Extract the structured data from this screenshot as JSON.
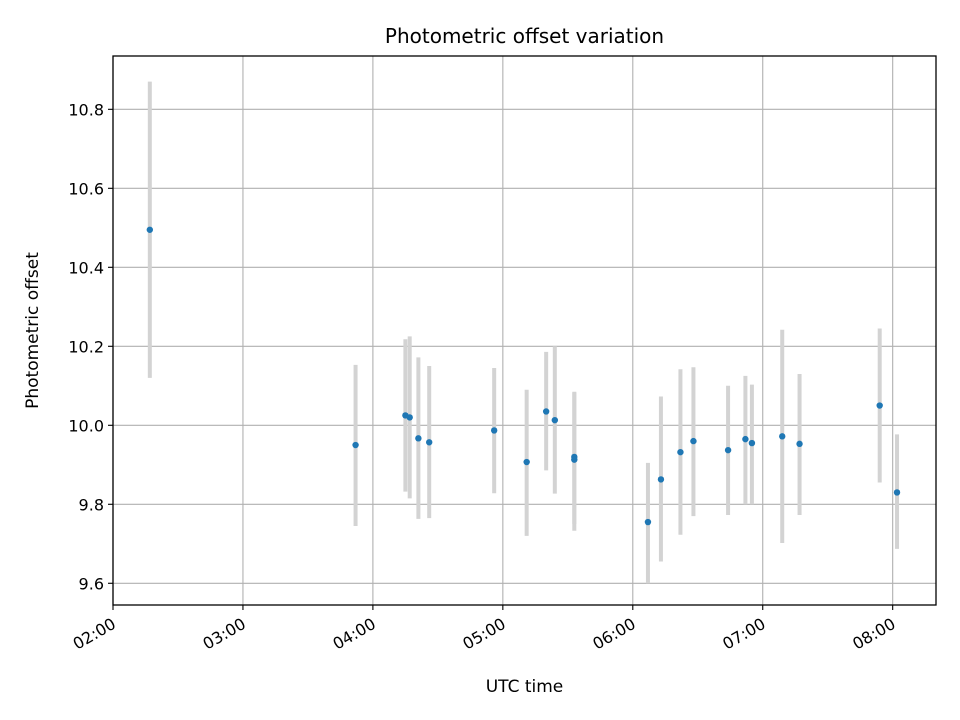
{
  "chart_data": {
    "type": "scatter",
    "title": "Photometric offset variation",
    "xlabel": "UTC time",
    "ylabel": "Photometric offset",
    "x_unit": "UTC time (HH:MM)",
    "xlim": [
      "02:00",
      "08:20"
    ],
    "ylim": [
      9.545,
      10.935
    ],
    "x_ticks": [
      "02:00",
      "03:00",
      "04:00",
      "05:00",
      "06:00",
      "07:00",
      "08:00"
    ],
    "y_ticks": [
      9.6,
      9.8,
      10.0,
      10.2,
      10.4,
      10.6,
      10.8
    ],
    "y_tick_labels": [
      "9.6",
      "9.8",
      "10.0",
      "10.2",
      "10.4",
      "10.6",
      "10.8"
    ],
    "grid": true,
    "point_color": "#1f77b4",
    "errorbar_color": "#d3d3d3",
    "series": [
      {
        "points": [
          {
            "x": "02:17",
            "y": 10.495,
            "ylow": 10.12,
            "yhigh": 10.87
          },
          {
            "x": "03:52",
            "y": 9.95,
            "ylow": 9.745,
            "yhigh": 10.153
          },
          {
            "x": "04:15",
            "y": 10.025,
            "ylow": 9.832,
            "yhigh": 10.218
          },
          {
            "x": "04:17",
            "y": 10.02,
            "ylow": 9.815,
            "yhigh": 10.225
          },
          {
            "x": "04:21",
            "y": 9.967,
            "ylow": 9.763,
            "yhigh": 10.172
          },
          {
            "x": "04:26",
            "y": 9.957,
            "ylow": 9.765,
            "yhigh": 10.15
          },
          {
            "x": "04:56",
            "y": 9.987,
            "ylow": 9.828,
            "yhigh": 10.145
          },
          {
            "x": "05:11",
            "y": 9.907,
            "ylow": 9.72,
            "yhigh": 10.09
          },
          {
            "x": "05:20",
            "y": 10.035,
            "ylow": 9.886,
            "yhigh": 10.186
          },
          {
            "x": "05:24",
            "y": 10.013,
            "ylow": 9.827,
            "yhigh": 10.2
          },
          {
            "x": "05:33",
            "y": 9.913,
            "ylow": 9.733,
            "yhigh": 10.085
          },
          {
            "x": "05:33",
            "y": 9.92,
            "ylow": 9.75,
            "yhigh": 10.083
          },
          {
            "x": "06:07",
            "y": 9.755,
            "ylow": 9.6,
            "yhigh": 9.905
          },
          {
            "x": "06:13",
            "y": 9.863,
            "ylow": 9.655,
            "yhigh": 10.073
          },
          {
            "x": "06:22",
            "y": 9.932,
            "ylow": 9.723,
            "yhigh": 10.142
          },
          {
            "x": "06:28",
            "y": 9.96,
            "ylow": 9.77,
            "yhigh": 10.147
          },
          {
            "x": "06:44",
            "y": 9.937,
            "ylow": 9.773,
            "yhigh": 10.1
          },
          {
            "x": "06:52",
            "y": 9.965,
            "ylow": 9.8,
            "yhigh": 10.125
          },
          {
            "x": "06:55",
            "y": 9.955,
            "ylow": 9.8,
            "yhigh": 10.103
          },
          {
            "x": "07:09",
            "y": 9.972,
            "ylow": 9.702,
            "yhigh": 10.242
          },
          {
            "x": "07:17",
            "y": 9.953,
            "ylow": 9.773,
            "yhigh": 10.13
          },
          {
            "x": "07:54",
            "y": 10.05,
            "ylow": 9.855,
            "yhigh": 10.245
          },
          {
            "x": "08:02",
            "y": 9.83,
            "ylow": 9.687,
            "yhigh": 9.977
          }
        ]
      }
    ]
  }
}
